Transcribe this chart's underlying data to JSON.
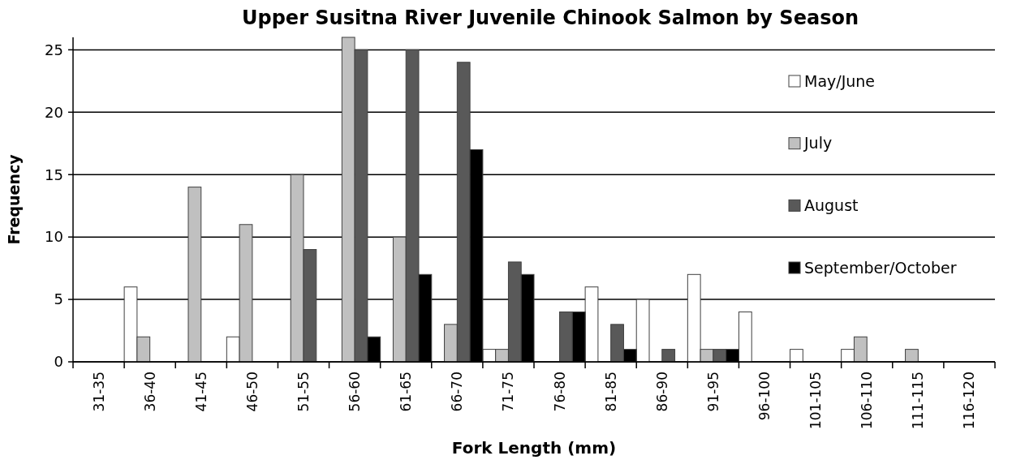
{
  "chart_data": {
    "type": "bar",
    "title": "Upper Susitna River Juvenile Chinook Salmon by Season",
    "xlabel": "Fork Length (mm)",
    "ylabel": "Frequency",
    "categories": [
      "31-35",
      "36-40",
      "41-45",
      "46-50",
      "51-55",
      "56-60",
      "61-65",
      "66-70",
      "71-75",
      "76-80",
      "81-85",
      "86-90",
      "91-95",
      "96-100",
      "101-105",
      "106-110",
      "111-115",
      "116-120"
    ],
    "series": [
      {
        "name": "May/June",
        "color": "#ffffff",
        "values": [
          0,
          6,
          0,
          2,
          0,
          0,
          0,
          0,
          1,
          0,
          6,
          5,
          7,
          4,
          1,
          1,
          0,
          0
        ]
      },
      {
        "name": "July",
        "color": "#c0c0c0",
        "values": [
          0,
          2,
          14,
          11,
          15,
          26,
          10,
          3,
          1,
          0,
          0,
          0,
          1,
          0,
          0,
          2,
          1,
          0
        ]
      },
      {
        "name": "August",
        "color": "#595959",
        "values": [
          0,
          0,
          0,
          0,
          9,
          25,
          25,
          24,
          8,
          4,
          3,
          1,
          1,
          0,
          0,
          0,
          0,
          0
        ]
      },
      {
        "name": "September/October",
        "color": "#000000",
        "values": [
          0,
          0,
          0,
          0,
          0,
          2,
          7,
          17,
          7,
          4,
          1,
          0,
          1,
          0,
          0,
          0,
          0,
          0
        ]
      }
    ],
    "ylim": [
      0,
      26
    ],
    "yticks": [
      0,
      5,
      10,
      15,
      20,
      25
    ],
    "grid": "y",
    "legend": "right"
  }
}
